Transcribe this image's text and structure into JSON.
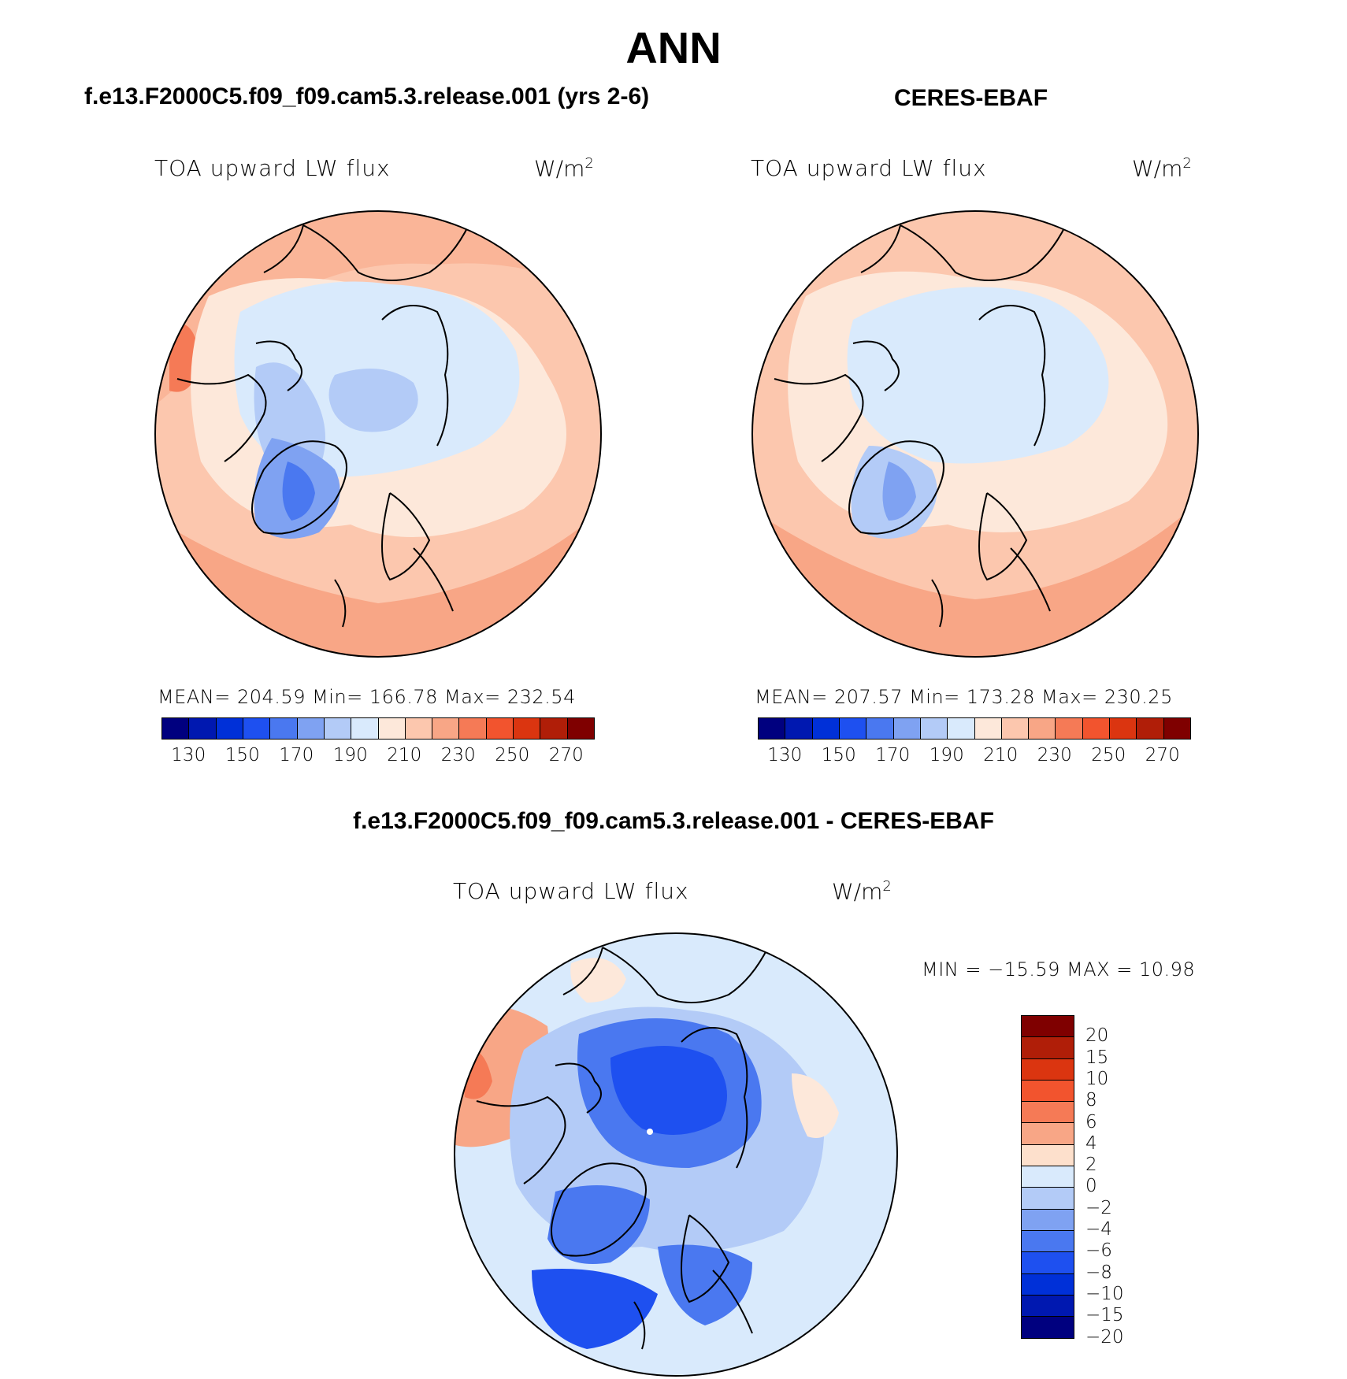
{
  "title": "ANN",
  "panels": {
    "model": {
      "title": "f.e13.F2000C5.f09_f09.cam5.3.release.001 (yrs 2-6)",
      "variable": "TOA upward LW flux",
      "units": "W/m",
      "units_exp": "2",
      "stats": "MEAN= 204.59   Min= 166.78   Max= 232.54"
    },
    "obs": {
      "title": "CERES-EBAF",
      "variable": "TOA upward LW flux",
      "units": "W/m",
      "units_exp": "2",
      "stats": "MEAN= 207.57   Min= 173.28   Max= 230.25"
    },
    "diff": {
      "title": "f.e13.F2000C5.f09_f09.cam5.3.release.001 - CERES-EBAF",
      "variable": "TOA upward LW flux",
      "units": "W/m",
      "units_exp": "2",
      "stats": "MIN = −15.59 MAX =   10.98"
    }
  },
  "colorbar_abs": {
    "colors": [
      "#00007f",
      "#0018b0",
      "#0030d8",
      "#1e50f0",
      "#4a78f0",
      "#7fa2f2",
      "#b3cbf7",
      "#d9eafc",
      "#fde8da",
      "#fcc7ae",
      "#f8a686",
      "#f57a56",
      "#f2542e",
      "#db3510",
      "#b01e08",
      "#7f0000"
    ],
    "tick_labels": [
      "130",
      "150",
      "170",
      "190",
      "210",
      "230",
      "250",
      "270"
    ]
  },
  "colorbar_diff": {
    "colors": [
      "#7f0000",
      "#b01e08",
      "#db3510",
      "#f2542e",
      "#f57a56",
      "#f8a686",
      "#fde0cc",
      "#d9eafc",
      "#b3cbf7",
      "#7fa2f2",
      "#4a78f0",
      "#1e50f0",
      "#0030d8",
      "#0018b0",
      "#00007f"
    ],
    "tick_labels": [
      "20",
      "15",
      "10",
      "8",
      "6",
      "4",
      "2",
      "0",
      "−2",
      "−4",
      "−6",
      "−8",
      "−10",
      "−15",
      "−20"
    ]
  }
}
